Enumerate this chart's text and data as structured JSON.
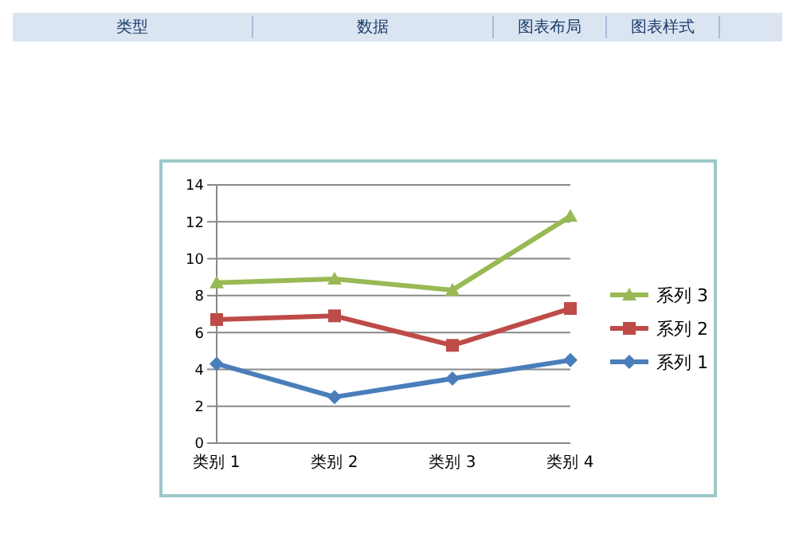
{
  "chart_data": {
    "type": "line",
    "categories": [
      "类别 1",
      "类别 2",
      "类别 3",
      "类别 4"
    ],
    "series": [
      {
        "name": "系列 1",
        "color": "#4a7ebb",
        "marker": "diamond",
        "values": [
          4.3,
          2.5,
          3.5,
          4.5
        ]
      },
      {
        "name": "系列 2",
        "color": "#be4b48",
        "marker": "square",
        "values": [
          6.7,
          6.9,
          5.3,
          7.3
        ]
      },
      {
        "name": "系列 3",
        "color": "#98b954",
        "marker": "triangle",
        "values": [
          8.7,
          8.9,
          8.3,
          12.3
        ]
      }
    ],
    "ylim": [
      0,
      14
    ],
    "yticks": [
      0,
      2,
      4,
      6,
      8,
      10,
      12,
      14
    ],
    "grid": "y",
    "legend": "right",
    "line_style": "solid",
    "annotations": [
      "类型",
      "数据",
      "图表布局",
      "图表样式"
    ]
  }
}
